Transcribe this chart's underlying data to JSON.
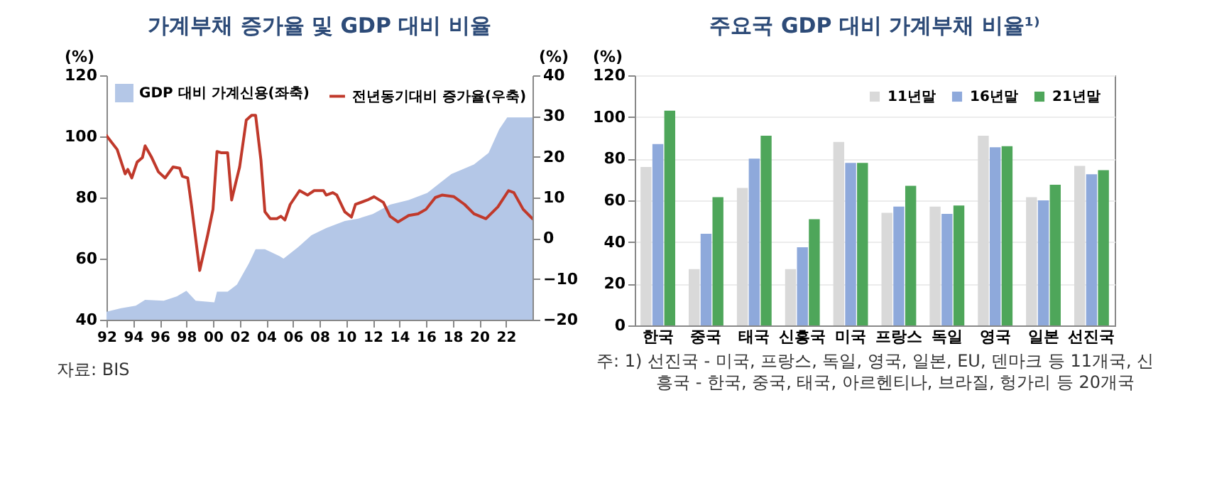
{
  "chart_data": [
    {
      "type": "area",
      "title": "가계부채 증가율 및 GDP 대비 비율",
      "ylabel": "(%)",
      "y2label": "(%)",
      "xlim": [
        1992,
        2024
      ],
      "xticks": [
        {
          "value": 1992,
          "label": "92"
        },
        {
          "value": 1994,
          "label": "94"
        },
        {
          "value": 1996,
          "label": "96"
        },
        {
          "value": 1998,
          "label": "98"
        },
        {
          "value": 2000,
          "label": "00"
        },
        {
          "value": 2002,
          "label": "02"
        },
        {
          "value": 2004,
          "label": "04"
        },
        {
          "value": 2006,
          "label": "06"
        },
        {
          "value": 2008,
          "label": "08"
        },
        {
          "value": 2010,
          "label": "10"
        },
        {
          "value": 2012,
          "label": "12"
        },
        {
          "value": 2014,
          "label": "14"
        },
        {
          "value": 2016,
          "label": "16"
        },
        {
          "value": 2018,
          "label": "18"
        },
        {
          "value": 2020,
          "label": "20"
        },
        {
          "value": 2022,
          "label": "22"
        }
      ],
      "ylim": [
        40,
        120
      ],
      "yticks": [
        40,
        60,
        80,
        100,
        120
      ],
      "y2lim": [
        -20,
        40
      ],
      "y2ticks": [
        -20,
        -10,
        0,
        10,
        20,
        30,
        40
      ],
      "legend": "top left",
      "annotations": [
        "자료: BIS"
      ],
      "series": [
        {
          "name": "GDP 대비 가계신용(좌축)",
          "type": "area",
          "color": "#b4c7e7",
          "x": [
            1992.0,
            1993.1,
            1994.2,
            1994.9,
            1996.3,
            1997.3,
            1998.0,
            1998.7,
            2000.1,
            2000.3,
            2001.1,
            2001.8,
            2002.7,
            2003.2,
            2003.9,
            2005.0,
            2005.3,
            2006.4,
            2007.4,
            2008.5,
            2009.9,
            2010.9,
            2012.0,
            2013.3,
            2014.7,
            2016.1,
            2017.9,
            2019.6,
            2020.7,
            2021.5,
            2022.1,
            2024.0
          ],
          "values": [
            42.6,
            43.8,
            44.6,
            46.5,
            46.2,
            47.7,
            49.5,
            46.2,
            45.7,
            49.2,
            49.2,
            51.5,
            58.5,
            63.1,
            63.1,
            60.8,
            60.0,
            63.8,
            67.7,
            70.0,
            72.3,
            73.1,
            74.6,
            77.7,
            79.2,
            81.5,
            87.7,
            90.8,
            94.6,
            102.3,
            106.2,
            106.2
          ]
        },
        {
          "name": "전년동기대비 증가율(우축)",
          "type": "line",
          "axis": "y2",
          "color": "#c0392b",
          "x": [
            1992.0,
            1992.8,
            1993.4,
            1993.6,
            1993.9,
            1994.3,
            1994.7,
            1994.9,
            1995.4,
            1995.9,
            1996.4,
            1997.0,
            1997.5,
            1997.7,
            1998.1,
            1998.4,
            1999.0,
            1999.6,
            2000.0,
            2000.3,
            2000.6,
            2001.1,
            2001.4,
            2001.7,
            2002.0,
            2002.5,
            2002.9,
            2003.2,
            2003.6,
            2003.9,
            2004.3,
            2004.8,
            2005.1,
            2005.4,
            2005.8,
            2006.5,
            2007.1,
            2007.6,
            2008.3,
            2008.5,
            2009.0,
            2009.3,
            2009.9,
            2010.4,
            2010.7,
            2011.6,
            2012.1,
            2012.8,
            2013.3,
            2013.9,
            2014.7,
            2015.4,
            2016.0,
            2016.7,
            2017.2,
            2018.1,
            2018.9,
            2019.6,
            2020.5,
            2021.4,
            2022.2,
            2022.6,
            2023.3,
            2024.0
          ],
          "values": [
            25.2,
            21.8,
            15.8,
            16.9,
            14.8,
            18.7,
            19.8,
            22.7,
            19.8,
            16.3,
            14.8,
            17.5,
            17.2,
            15.2,
            14.8,
            7.7,
            -7.9,
            0.8,
            7.1,
            21.3,
            21.0,
            21.0,
            9.4,
            13.5,
            17.5,
            29.0,
            30.2,
            30.2,
            19.2,
            6.5,
            4.8,
            4.8,
            5.4,
            4.5,
            8.3,
            11.7,
            10.6,
            11.7,
            11.7,
            10.6,
            11.2,
            10.6,
            6.5,
            5.2,
            8.3,
            9.4,
            10.2,
            8.8,
            5.4,
            4.0,
            5.6,
            6.0,
            7.1,
            10.0,
            10.6,
            10.2,
            8.3,
            6.0,
            4.8,
            7.7,
            11.7,
            11.2,
            7.1,
            4.8
          ]
        }
      ]
    },
    {
      "type": "bar",
      "title": "주요국 GDP 대비 가계부채 비율¹⁾",
      "ylabel": "(%)",
      "categories": [
        "한국",
        "중국",
        "태국",
        "신흥국",
        "미국",
        "프랑스",
        "독일",
        "영국",
        "일본",
        "선진국"
      ],
      "ylim": [
        0,
        120
      ],
      "yticks": [
        0,
        20,
        40,
        60,
        80,
        100,
        120
      ],
      "grid": "y",
      "legend": "top right",
      "annotations": [
        "주: 1) 선진국 - 미국, 프랑스, 독일, 영국, 일본, EU, 덴마크 등 11개국, 신흥국 - 한국, 중국, 태국, 아르헨티나, 브라질, 헝가리 등 20개국"
      ],
      "series": [
        {
          "name": "11년말",
          "color": "#d9d9d9",
          "values": [
            76,
            27,
            66,
            27,
            88,
            54,
            57,
            91,
            61.5,
            76.5
          ]
        },
        {
          "name": "16년말",
          "color": "#8ea9db",
          "values": [
            87,
            44,
            80,
            37.5,
            78,
            57,
            53.5,
            85.5,
            60,
            72.5
          ]
        },
        {
          "name": "21년말",
          "color": "#4ea65a",
          "values": [
            103,
            61.5,
            91,
            51,
            78,
            67,
            57.5,
            86,
            67.5,
            74.5
          ]
        }
      ]
    }
  ]
}
